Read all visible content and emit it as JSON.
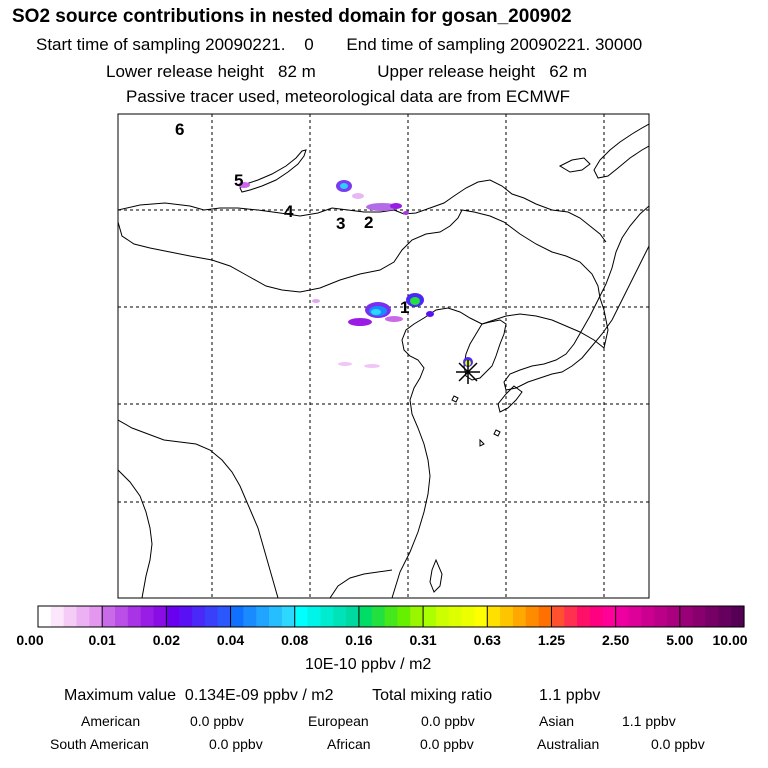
{
  "header": {
    "title": "SO2 source contributions in nested domain for gosan_200902",
    "start_label": "Start time of sampling 20090221.",
    "start_value": "0",
    "end_label": "End time of sampling 20090221. 30000",
    "lower_label": "Lower release height",
    "lower_value": "82 m",
    "upper_label": "Upper release height",
    "upper_value": "62 m",
    "info": "Passive tracer used, meteorological data are from ECMWF"
  },
  "map": {
    "source_labels": [
      "6",
      "5",
      "4",
      "3",
      "2",
      "1"
    ],
    "receptor": "gosan receptor star"
  },
  "colorbar": {
    "tick_labels": [
      "0.00",
      "0.01",
      "0.02",
      "0.04",
      "0.08",
      "0.16",
      "0.31",
      "0.63",
      "1.25",
      "2.50",
      "5.00",
      "10.00"
    ],
    "unit": "10E-10 ppbv / m2",
    "colors": [
      [
        "#ffffff",
        "#fbe6fb",
        "#f4ccf6",
        "#ecb1f2",
        "#e397ee"
      ],
      [
        "#c96ae8",
        "#b94fe6",
        "#a934e6",
        "#9a1de6",
        "#8b0de6"
      ],
      [
        "#6a00f0",
        "#5a10f5",
        "#4a28f8",
        "#3a40fa",
        "#2a58fc"
      ],
      [
        "#1070ff",
        "#1a8aff",
        "#20a4ff",
        "#26befe",
        "#2cd8fd"
      ],
      [
        "#00ffff",
        "#00f5e8",
        "#00ecd0",
        "#00e3b8",
        "#00daa0"
      ],
      [
        "#00dd66",
        "#22e040",
        "#44e81c",
        "#66f000",
        "#99f500"
      ],
      [
        "#aaff00",
        "#ccff00",
        "#ddff00",
        "#eeff00",
        "#ffff00"
      ],
      [
        "#ffe000",
        "#ffc400",
        "#ffa800",
        "#ff8c00",
        "#ff7000"
      ],
      [
        "#ff5030",
        "#ff3050",
        "#ff1068",
        "#ff0080",
        "#ff0099"
      ],
      [
        "#ee00a0",
        "#dd0099",
        "#cc0090",
        "#bb0088",
        "#aa0080"
      ],
      [
        "#990077",
        "#88006e",
        "#770066",
        "#66005e",
        "#550055"
      ]
    ]
  },
  "stats": {
    "max_label": "Maximum value",
    "max_value": "0.134E-09 ppbv / m2",
    "total_label": "Total mixing ratio",
    "total_value": "1.1 ppbv",
    "regions": [
      {
        "name": "American",
        "value": "0.0 ppbv"
      },
      {
        "name": "European",
        "value": "0.0 ppbv"
      },
      {
        "name": "Asian",
        "value": "1.1 ppbv"
      },
      {
        "name": "South American",
        "value": "0.0 ppbv"
      },
      {
        "name": "African",
        "value": "0.0 ppbv"
      },
      {
        "name": "Australian",
        "value": "0.0 ppbv"
      }
    ]
  }
}
